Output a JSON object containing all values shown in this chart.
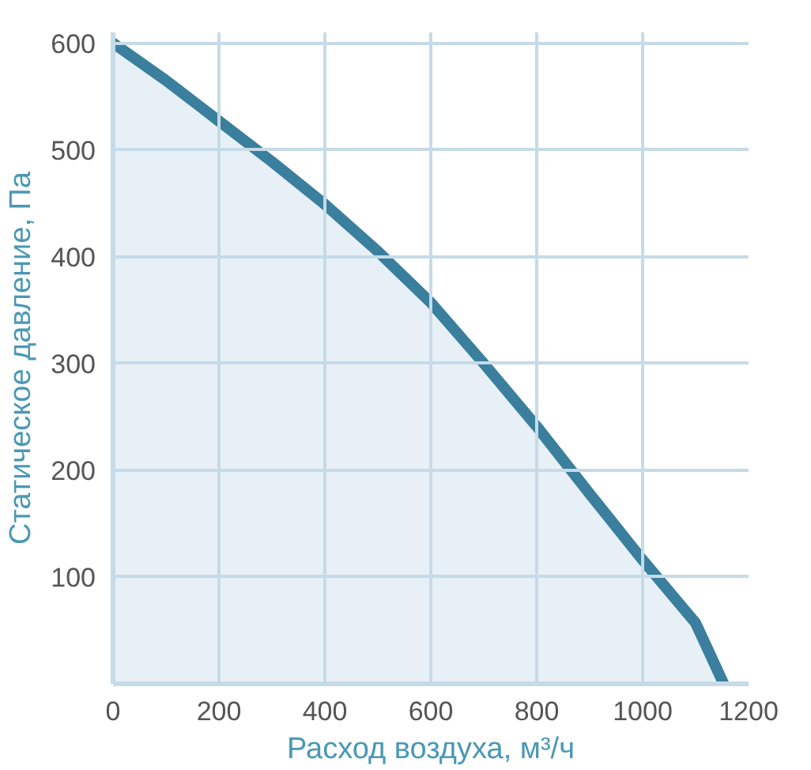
{
  "chart_data": {
    "type": "area",
    "xlabel": "Расход воздуха, м³/ч",
    "ylabel": "Статическое давление, Па",
    "x": [
      0,
      100,
      200,
      300,
      400,
      500,
      600,
      700,
      800,
      900,
      1000,
      1100,
      1153
    ],
    "series": [
      {
        "color": "#3a7f9e",
        "values": [
          600,
          565,
          527,
          489,
          449,
          405,
          357,
          300,
          241,
          178,
          116,
          57,
          0
        ]
      }
    ],
    "xlim": [
      0,
      1200
    ],
    "ylim": [
      0,
      610
    ],
    "xticks": [
      0,
      200,
      400,
      600,
      800,
      1000,
      1200
    ],
    "yticks": [
      100,
      200,
      300,
      400,
      500,
      600
    ],
    "grid": true
  }
}
